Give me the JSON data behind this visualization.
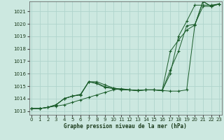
{
  "title": "Graphe pression niveau de la mer (hPa)",
  "xlabel_ticks": [
    0,
    1,
    2,
    3,
    4,
    5,
    6,
    7,
    8,
    9,
    10,
    11,
    12,
    13,
    14,
    15,
    16,
    17,
    18,
    19,
    20,
    21,
    22,
    23
  ],
  "yticks": [
    1013,
    1014,
    1015,
    1016,
    1017,
    1018,
    1019,
    1020,
    1021
  ],
  "ylim": [
    1012.7,
    1021.8
  ],
  "xlim": [
    -0.3,
    23.3
  ],
  "bg_color": "#cce8e0",
  "grid_color": "#b0d4cc",
  "line_color": "#1a5c2a",
  "series": [
    [
      1013.2,
      1013.2,
      1013.3,
      1013.4,
      1013.5,
      1013.7,
      1013.9,
      1014.1,
      1014.3,
      1014.5,
      1014.7,
      1014.8,
      1014.7,
      1014.65,
      1014.7,
      1014.7,
      1014.65,
      1014.6,
      1014.6,
      1014.7,
      1019.9,
      1021.8,
      1021.4,
      1021.6
    ],
    [
      1013.2,
      1013.2,
      1013.3,
      1013.5,
      1014.0,
      1014.2,
      1014.3,
      1015.35,
      1015.2,
      1014.9,
      1014.8,
      1014.7,
      1014.7,
      1014.65,
      1014.7,
      1014.7,
      1014.65,
      1017.8,
      1018.7,
      1019.5,
      1019.9,
      1021.8,
      1021.4,
      1021.6
    ],
    [
      1013.2,
      1013.2,
      1013.3,
      1013.5,
      1014.0,
      1014.2,
      1014.3,
      1015.35,
      1015.25,
      1014.95,
      1014.85,
      1014.75,
      1014.7,
      1014.65,
      1014.7,
      1014.7,
      1014.65,
      1016.3,
      1017.8,
      1019.85,
      1019.95,
      1021.4,
      1021.4,
      1021.6
    ],
    [
      1013.2,
      1013.2,
      1013.3,
      1013.5,
      1014.0,
      1014.2,
      1014.35,
      1015.35,
      1015.35,
      1015.1,
      1014.85,
      1014.75,
      1014.7,
      1014.65,
      1014.7,
      1014.7,
      1014.65,
      1016.0,
      1019.0,
      1020.2,
      1021.5,
      1021.5,
      1021.5,
      1021.6
    ]
  ],
  "x_positions": [
    0,
    1,
    2,
    3,
    4,
    5,
    6,
    7,
    8,
    9,
    10,
    11,
    12,
    13,
    14,
    15,
    16,
    17,
    18,
    19,
    20,
    21,
    22,
    23
  ]
}
